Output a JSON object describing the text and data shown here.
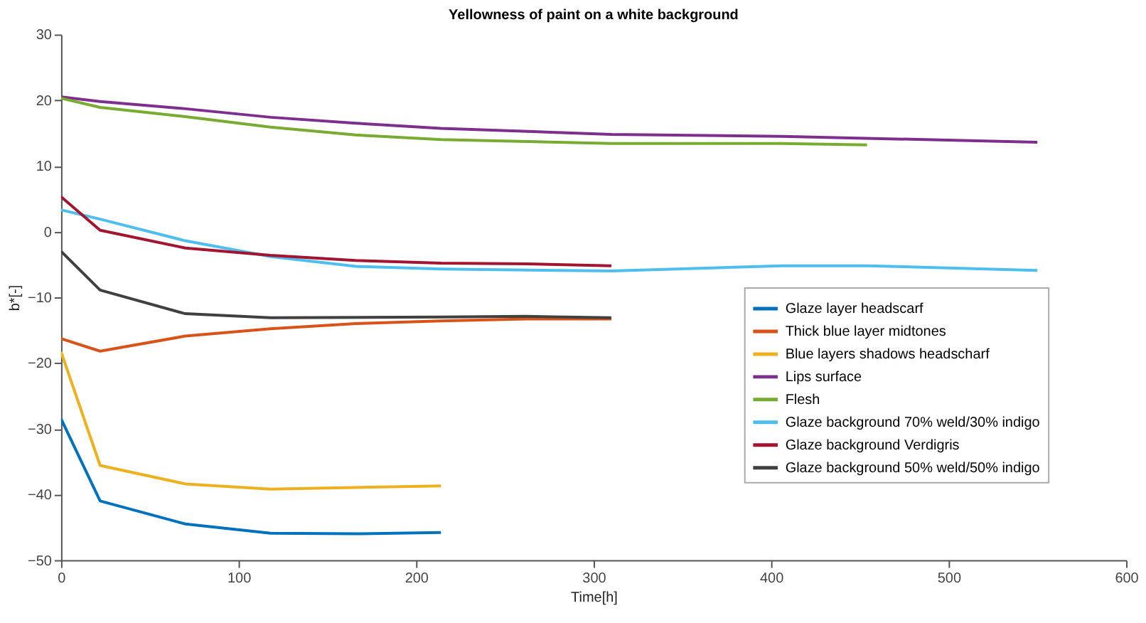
{
  "chart_data": {
    "type": "line",
    "title": "Yellowness of paint on a white background",
    "xlabel": "Time[h]",
    "ylabel": "b*[-]",
    "xlim": [
      0,
      600
    ],
    "xticks": [
      0,
      100,
      200,
      300,
      400,
      500,
      600
    ],
    "ylim": [
      -50,
      30
    ],
    "yticks": [
      -50,
      -40,
      -30,
      -20,
      -10,
      0,
      10,
      20,
      30
    ],
    "grid": false,
    "legend": "bottom right",
    "marker": "none",
    "line_style": "solid",
    "series": [
      {
        "name": "Glaze layer headscarf",
        "color": "#0072bd",
        "x": [
          0,
          22,
          70,
          118,
          166,
          214
        ],
        "values": [
          -28.5,
          -41,
          -44.5,
          -45.9,
          -46,
          -45.8
        ]
      },
      {
        "name": "Thick blue layer midtones",
        "color": "#d95319",
        "x": [
          0,
          22,
          70,
          118,
          166,
          214,
          262,
          310
        ],
        "values": [
          -16.3,
          -18.2,
          -15.9,
          -14.8,
          -14,
          -13.6,
          -13.3,
          -13.3
        ]
      },
      {
        "name": "Blue layers shadows headscharf",
        "color": "#edb120",
        "x": [
          0,
          22,
          70,
          118,
          214
        ],
        "values": [
          -18.3,
          -35.6,
          -38.4,
          -39.2,
          -38.7
        ]
      },
      {
        "name": "Lips surface",
        "color": "#7e2f8e",
        "x": [
          0,
          22,
          70,
          118,
          166,
          214,
          310,
          406,
          550
        ],
        "values": [
          20.5,
          19.8,
          18.7,
          17.4,
          16.5,
          15.7,
          14.8,
          14.5,
          13.6
        ]
      },
      {
        "name": "Flesh",
        "color": "#77ac30",
        "x": [
          0,
          22,
          70,
          118,
          166,
          214,
          310,
          406,
          454
        ],
        "values": [
          20.3,
          18.9,
          17.5,
          15.9,
          14.7,
          14.0,
          13.4,
          13.4,
          13.2
        ]
      },
      {
        "name": "Glaze background 70% weld/30% indigo",
        "color": "#4dbeee",
        "x": [
          0,
          22,
          70,
          118,
          166,
          214,
          310,
          406,
          454,
          550
        ],
        "values": [
          3.3,
          1.9,
          -1.4,
          -3.8,
          -5.3,
          -5.7,
          -6.0,
          -5.2,
          -5.2,
          -5.9
        ]
      },
      {
        "name": "Glaze background Verdigris",
        "color": "#a2142f",
        "x": [
          0,
          22,
          70,
          118,
          166,
          214,
          262,
          310
        ],
        "values": [
          5.3,
          0.2,
          -2.5,
          -3.6,
          -4.4,
          -4.8,
          -4.9,
          -5.2
        ]
      },
      {
        "name": "Glaze background 50% weld/50% indigo",
        "color": "#404040",
        "x": [
          0,
          22,
          70,
          118,
          214,
          262,
          310
        ],
        "values": [
          -3,
          -8.9,
          -12.5,
          -13.1,
          -13.0,
          -12.9,
          -13.1
        ]
      }
    ]
  }
}
